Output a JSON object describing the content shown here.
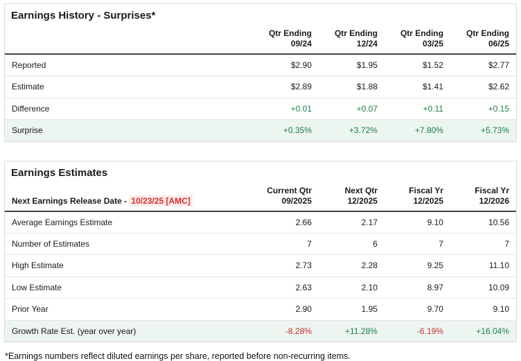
{
  "surprises": {
    "title": "Earnings History - Surprises*",
    "col_headers": [
      [
        "Qtr Ending",
        "09/24"
      ],
      [
        "Qtr Ending",
        "12/24"
      ],
      [
        "Qtr Ending",
        "03/25"
      ],
      [
        "Qtr Ending",
        "06/25"
      ]
    ],
    "rows": [
      {
        "label": "Reported",
        "values": [
          "$2.90",
          "$1.95",
          "$1.52",
          "$2.77"
        ]
      },
      {
        "label": "Estimate",
        "values": [
          "$2.89",
          "$1.88",
          "$1.41",
          "$2.62"
        ]
      },
      {
        "label": "Difference",
        "values": [
          "+0.01",
          "+0.07",
          "+0.11",
          "+0.15"
        ]
      },
      {
        "label": "Surprise",
        "values": [
          "+0.35%",
          "+3.72%",
          "+7.80%",
          "+5.73%"
        ]
      }
    ]
  },
  "estimates": {
    "title": "Earnings Estimates",
    "release_label": "Next Earnings Release Date - ",
    "release_date": "10/23/25 [AMC]",
    "col_headers": [
      [
        "Current Qtr",
        "09/2025"
      ],
      [
        "Next Qtr",
        "12/2025"
      ],
      [
        "Fiscal Yr",
        "12/2025"
      ],
      [
        "Fiscal Yr",
        "12/2026"
      ]
    ],
    "rows": [
      {
        "label": "Average Earnings Estimate",
        "values": [
          "2.66",
          "2.17",
          "9.10",
          "10.56"
        ]
      },
      {
        "label": "Number of Estimates",
        "values": [
          "7",
          "6",
          "7",
          "7"
        ]
      },
      {
        "label": "High Estimate",
        "values": [
          "2.73",
          "2.28",
          "9.25",
          "11.10"
        ]
      },
      {
        "label": "Low Estimate",
        "values": [
          "2.63",
          "2.10",
          "8.97",
          "10.09"
        ]
      },
      {
        "label": "Prior Year",
        "values": [
          "2.90",
          "1.95",
          "9.70",
          "9.10"
        ]
      },
      {
        "label": "Growth Rate Est. (year over year)",
        "values": [
          "-8.28%",
          "+11.28%",
          "-6.19%",
          "+16.04%"
        ]
      }
    ]
  },
  "footnote": "*Earnings numbers reflect diluted earnings per share, reported before non-recurring items.",
  "colors": {
    "positive_green": "#1c7d45",
    "negative_red": "#c62b2b",
    "highlight_row_green": "#ecf5ef",
    "date_highlight": "#fdeaea",
    "date_red": "#d32f2f"
  }
}
